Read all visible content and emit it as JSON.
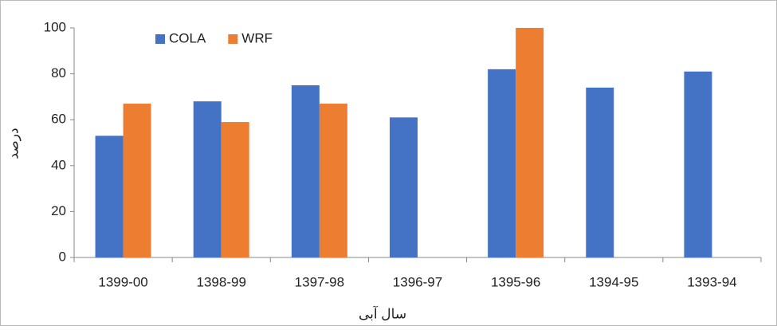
{
  "chart_data": {
    "type": "bar",
    "categories": [
      "1399-00",
      "1398-99",
      "1397-98",
      "1396-97",
      "1395-96",
      "1394-95",
      "1393-94"
    ],
    "series": [
      {
        "name": "COLA",
        "color": "#4472c4",
        "values": [
          53,
          68,
          75,
          61,
          82,
          74,
          81
        ]
      },
      {
        "name": "WRF",
        "color": "#ed7d31",
        "values": [
          67,
          59,
          67,
          null,
          100,
          null,
          null
        ]
      }
    ],
    "ylim": [
      0,
      100
    ],
    "yticks": [
      0,
      20,
      40,
      60,
      80,
      100
    ],
    "x_label": "سال آبی",
    "y_label": "درصد",
    "grid": false,
    "legend": "top-left"
  }
}
